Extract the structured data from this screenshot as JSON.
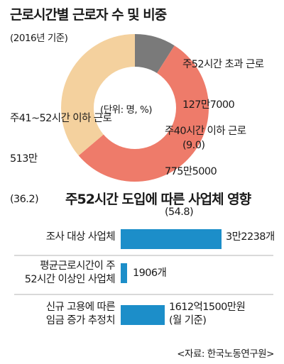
{
  "chart_data": [
    {
      "type": "pie",
      "title": "근로시간별 근로자 수 및 비중",
      "subtitle": "(2016년 기준)",
      "center_label": "(단위: 명, %)",
      "slices": [
        {
          "label": "주40시간 이하 근로",
          "count": "775만5000",
          "percent": 54.8,
          "percent_text": "(54.8)",
          "color": "#ee7b6a"
        },
        {
          "label": "주41~52시간 이하 근로",
          "count": "513만",
          "percent": 36.2,
          "percent_text": "(36.2)",
          "color": "#f4d19e"
        },
        {
          "label": "주52시간 초과 근로",
          "count": "127만7000",
          "percent": 9.0,
          "percent_text": "(9.0)",
          "color": "#7a7a7a"
        }
      ]
    },
    {
      "type": "bar",
      "title": "주52시간 도입에 따른 사업체 영향",
      "bars": [
        {
          "label_lines": [
            "조사 대상 사업체"
          ],
          "value": 32238,
          "value_lines": [
            "3만2238개"
          ]
        },
        {
          "label_lines": [
            "평균근로시간이 주",
            "52시간 이상인 사업체"
          ],
          "value": 1906,
          "value_lines": [
            "1906개"
          ]
        },
        {
          "label_lines": [
            "신규 고용에 따른",
            "임금 증가 추정치"
          ],
          "value": null,
          "value_lines": [
            "1612억1500만원",
            "(월 기준)"
          ]
        }
      ],
      "bar_color": "#1c8ec9"
    }
  ],
  "source": "<자료: 한국노동연구원>"
}
